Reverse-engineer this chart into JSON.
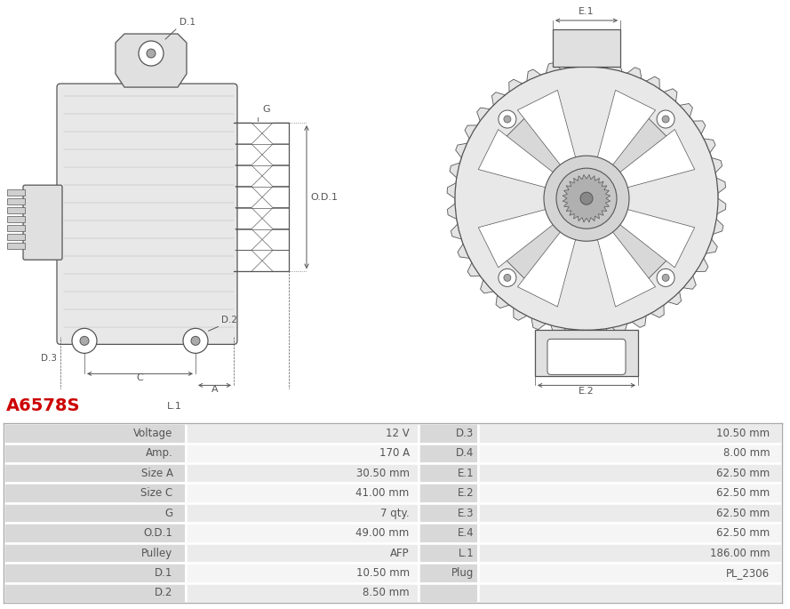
{
  "title": "A6578S",
  "title_color": "#cc0000",
  "background_color": "#ffffff",
  "table_data": [
    [
      "Voltage",
      "12 V",
      "D.3",
      "10.50 mm"
    ],
    [
      "Amp.",
      "170 A",
      "D.4",
      "8.00 mm"
    ],
    [
      "Size A",
      "30.50 mm",
      "E.1",
      "62.50 mm"
    ],
    [
      "Size C",
      "41.00 mm",
      "E.2",
      "62.50 mm"
    ],
    [
      "G",
      "7 qty.",
      "E.3",
      "62.50 mm"
    ],
    [
      "O.D.1",
      "49.00 mm",
      "E.4",
      "62.50 mm"
    ],
    [
      "Pulley",
      "AFP",
      "L.1",
      "186.00 mm"
    ],
    [
      "D.1",
      "10.50 mm",
      "Plug",
      "PL_2306"
    ],
    [
      "D.2",
      "8.50 mm",
      "",
      ""
    ]
  ],
  "text_color": "#555555",
  "font_size": 8.5,
  "label_bg": "#d8d8d8",
  "value_bg_odd": "#f0f0f0",
  "value_bg_even": "#e8e8e8",
  "border_color": "#ffffff",
  "line_color": "#555555",
  "dim_color": "#555555"
}
